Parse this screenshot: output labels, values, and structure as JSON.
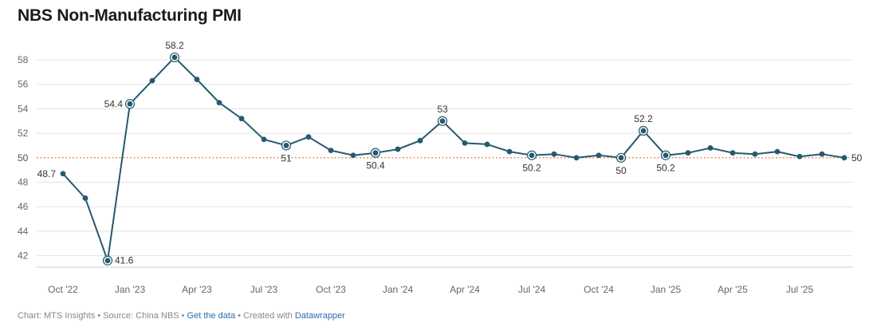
{
  "title": "NBS Non-Manufacturing PMI",
  "footer": {
    "chart_by": "Chart: MTS Insights",
    "sep1": " • ",
    "source": "Source: China NBS",
    "sep2": " • ",
    "get_data": "Get the data",
    "sep3": " • ",
    "created_with": "Created with ",
    "datawrapper": "Datawrapper"
  },
  "colors": {
    "line": "#245a6e",
    "reference": "#e0703a",
    "grid": "#e3e3e3",
    "tick_text": "#666666",
    "label_text": "#333333"
  },
  "chart_data": {
    "type": "line",
    "title": "NBS Non-Manufacturing PMI",
    "xlabel": "",
    "ylabel": "",
    "series": [
      {
        "name": "NBS Non-Manufacturing PMI",
        "x": [
          "2022-10",
          "2022-11",
          "2022-12",
          "2023-01",
          "2023-02",
          "2023-03",
          "2023-04",
          "2023-05",
          "2023-06",
          "2023-07",
          "2023-08",
          "2023-09",
          "2023-10",
          "2023-11",
          "2023-12",
          "2024-01",
          "2024-02",
          "2024-03",
          "2024-04",
          "2024-05",
          "2024-06",
          "2024-07",
          "2024-08",
          "2024-09",
          "2024-10",
          "2024-11",
          "2024-12",
          "2025-01",
          "2025-02",
          "2025-03",
          "2025-04",
          "2025-05",
          "2025-06",
          "2025-07",
          "2025-08",
          "2025-09",
          "2025-10"
        ],
        "values": [
          48.7,
          46.7,
          41.6,
          54.4,
          56.3,
          58.2,
          56.4,
          54.5,
          53.2,
          51.5,
          51.0,
          51.7,
          50.6,
          50.2,
          50.4,
          50.7,
          51.4,
          53.0,
          51.2,
          51.1,
          50.5,
          50.2,
          50.3,
          50.0,
          50.2,
          50.0,
          52.2,
          50.2,
          50.4,
          50.8,
          50.4,
          50.3,
          50.5,
          50.1,
          50.3,
          50.0,
          null
        ]
      }
    ],
    "ylim": [
      40.8,
      59.0
    ],
    "yticks": [
      42,
      44,
      46,
      48,
      50,
      52,
      54,
      56,
      58
    ],
    "xticks": [
      {
        "index": 0,
        "label": "Oct '22"
      },
      {
        "index": 3,
        "label": "Jan '23"
      },
      {
        "index": 6,
        "label": "Apr '23"
      },
      {
        "index": 9,
        "label": "Jul '23"
      },
      {
        "index": 12,
        "label": "Oct '23"
      },
      {
        "index": 15,
        "label": "Jan '24"
      },
      {
        "index": 18,
        "label": "Apr '24"
      },
      {
        "index": 21,
        "label": "Jul '24"
      },
      {
        "index": 24,
        "label": "Oct '24"
      },
      {
        "index": 27,
        "label": "Jan '25"
      },
      {
        "index": 30,
        "label": "Apr '25"
      },
      {
        "index": 33,
        "label": "Jul '25"
      }
    ],
    "reference_line": {
      "value": 50,
      "style": "dotted"
    },
    "annotations": [
      {
        "index": 0,
        "text": "48.7",
        "position": "left",
        "highlight": false
      },
      {
        "index": 2,
        "text": "41.6",
        "position": "right",
        "highlight": true
      },
      {
        "index": 3,
        "text": "54.4",
        "position": "left",
        "highlight": true
      },
      {
        "index": 5,
        "text": "58.2",
        "position": "above",
        "highlight": true
      },
      {
        "index": 10,
        "text": "51",
        "position": "below",
        "highlight": true
      },
      {
        "index": 14,
        "text": "50.4",
        "position": "below",
        "highlight": true
      },
      {
        "index": 17,
        "text": "53",
        "position": "above",
        "highlight": true
      },
      {
        "index": 21,
        "text": "50.2",
        "position": "below",
        "highlight": true
      },
      {
        "index": 25,
        "text": "50",
        "position": "below",
        "highlight": true
      },
      {
        "index": 26,
        "text": "52.2",
        "position": "above",
        "highlight": true
      },
      {
        "index": 27,
        "text": "50.2",
        "position": "below",
        "highlight": true
      },
      {
        "index": 35,
        "text": "50",
        "position": "right",
        "highlight": false
      }
    ]
  }
}
